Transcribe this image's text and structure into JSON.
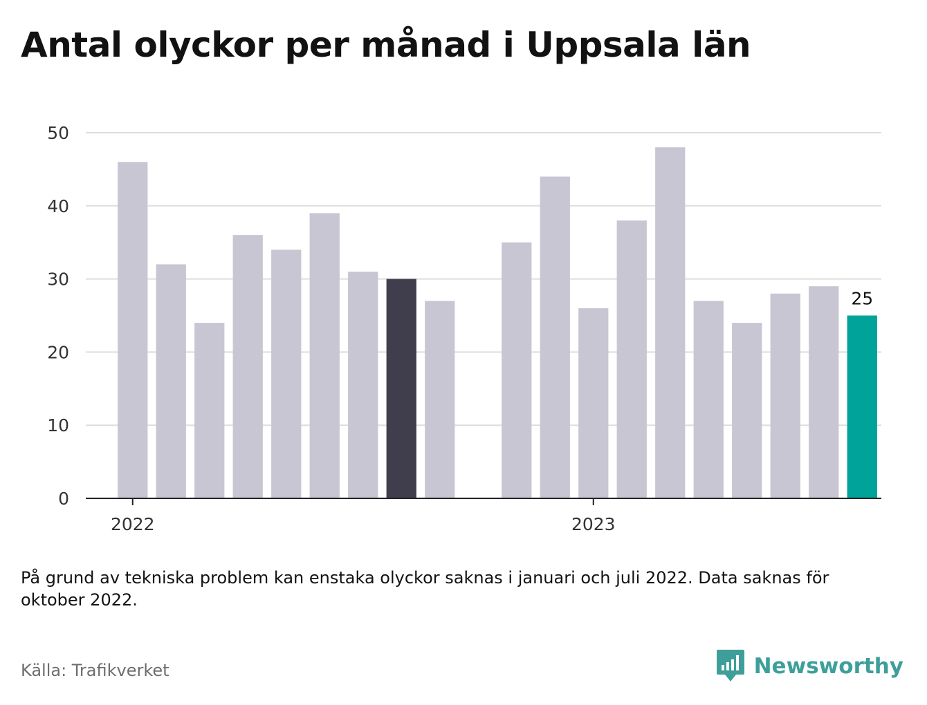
{
  "title": "Antal olyckor per månad i Uppsala län",
  "note": "På grund av tekniska problem kan enstaka olyckor saknas i januari och juli 2022. Data saknas för oktober 2022.",
  "source": "Källa: Trafikverket",
  "brand": {
    "name": "Newsworthy",
    "icon": "newsworthy-logo-icon",
    "color": "#3e9f9a"
  },
  "colors": {
    "default": "#c8c6d3",
    "highlight": "#403e4c",
    "latest": "#00a39a",
    "grid": "#dddddd",
    "axis": "#222222"
  },
  "chart_data": {
    "type": "bar",
    "x_tick_labels": [
      "2022",
      "2023"
    ],
    "ylim": [
      0,
      50
    ],
    "yticks": [
      0,
      10,
      20,
      30,
      40,
      50
    ],
    "grid": true,
    "series": [
      {
        "values": [
          {
            "year": 2022,
            "month": 1,
            "value": 46
          },
          {
            "year": 2022,
            "month": 2,
            "value": 32
          },
          {
            "year": 2022,
            "month": 3,
            "value": 24
          },
          {
            "year": 2022,
            "month": 4,
            "value": 36
          },
          {
            "year": 2022,
            "month": 5,
            "value": 34
          },
          {
            "year": 2022,
            "month": 6,
            "value": 39
          },
          {
            "year": 2022,
            "month": 7,
            "value": 31
          },
          {
            "year": 2022,
            "month": 8,
            "value": 30,
            "highlight": true
          },
          {
            "year": 2022,
            "month": 9,
            "value": 27
          },
          {
            "year": 2022,
            "month": 10,
            "value": null
          },
          {
            "year": 2022,
            "month": 11,
            "value": 35
          },
          {
            "year": 2022,
            "month": 12,
            "value": 44
          },
          {
            "year": 2023,
            "month": 1,
            "value": 26
          },
          {
            "year": 2023,
            "month": 2,
            "value": 38
          },
          {
            "year": 2023,
            "month": 3,
            "value": 48
          },
          {
            "year": 2023,
            "month": 4,
            "value": 27
          },
          {
            "year": 2023,
            "month": 5,
            "value": 24
          },
          {
            "year": 2023,
            "month": 6,
            "value": 28
          },
          {
            "year": 2023,
            "month": 7,
            "value": 29
          },
          {
            "year": 2023,
            "month": 8,
            "value": 25,
            "latest": true
          }
        ]
      }
    ],
    "data_labels": [
      "25"
    ]
  }
}
